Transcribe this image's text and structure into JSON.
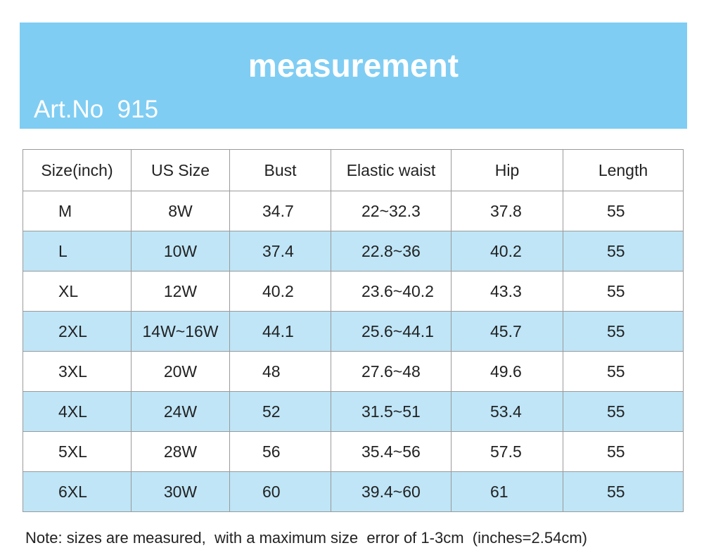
{
  "header": {
    "title": "measurement",
    "art_no": "Art.No  915"
  },
  "table": {
    "columns": [
      "Size(inch)",
      "US Size",
      "Bust",
      "Elastic waist",
      "Hip",
      "Length"
    ],
    "rows": [
      [
        "M",
        "8W",
        "34.7",
        "22~32.3",
        "37.8",
        "55"
      ],
      [
        "L",
        "10W",
        "37.4",
        "22.8~36",
        "40.2",
        "55"
      ],
      [
        "XL",
        "12W",
        "40.2",
        "23.6~40.2",
        "43.3",
        "55"
      ],
      [
        "2XL",
        "14W~16W",
        "44.1",
        "25.6~44.1",
        "45.7",
        "55"
      ],
      [
        "3XL",
        "20W",
        "48",
        "27.6~48",
        "49.6",
        "55"
      ],
      [
        "4XL",
        "24W",
        "52",
        "31.5~51",
        "53.4",
        "55"
      ],
      [
        "5XL",
        "28W",
        "56",
        "35.4~56",
        "57.5",
        "55"
      ],
      [
        "6XL",
        "30W",
        "60",
        "39.4~60",
        "61",
        "55"
      ]
    ]
  },
  "note": "Note: sizes are measured,  with a maximum size  error of 1-3cm  (inches=2.54cm)"
}
